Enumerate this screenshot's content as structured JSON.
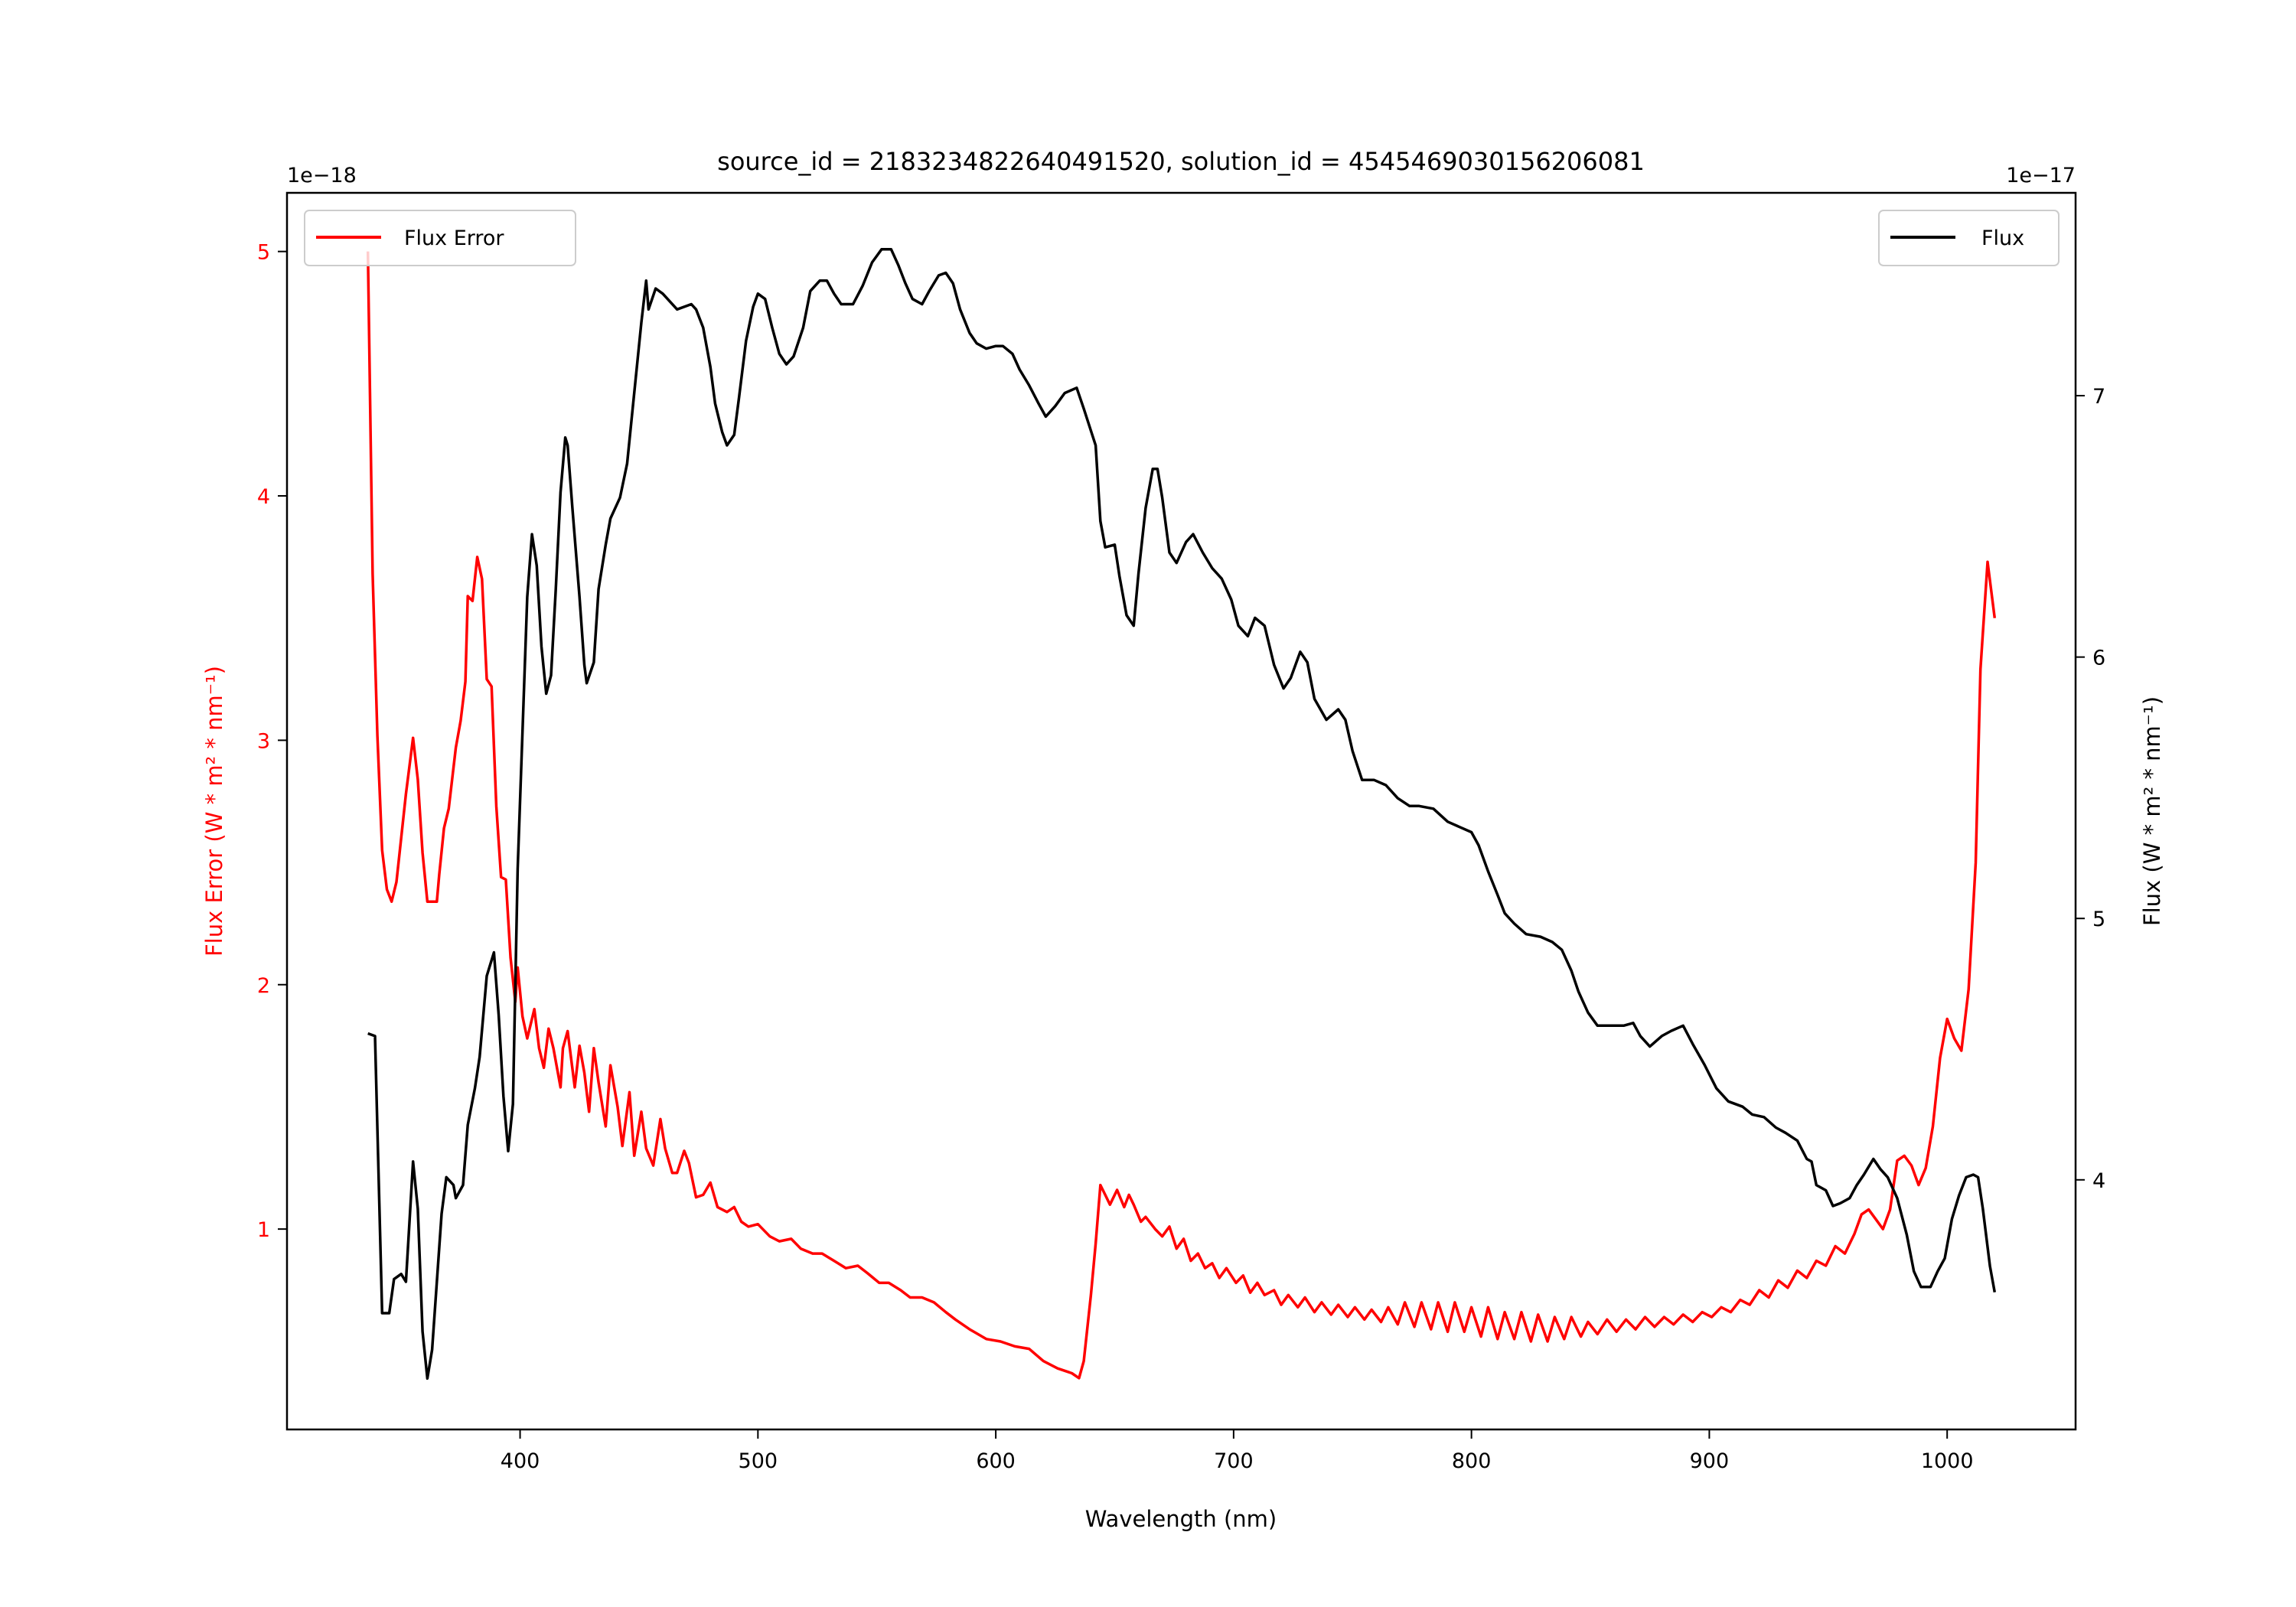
{
  "chart_data": {
    "type": "line",
    "title": "source_id = 2183234822640491520, solution_id = 4545469030156206081",
    "xlabel": "Wavelength (nm)",
    "xlim": [
      302,
      1054
    ],
    "xticks": [
      400,
      500,
      600,
      700,
      800,
      900,
      1000
    ],
    "left_axis": {
      "ylabel": "Flux Error (W * m² * nm⁻¹)",
      "offset_text": "1e−18",
      "ylim": [
        0.18,
        5.24
      ],
      "yticks": [
        1,
        2,
        3,
        4,
        5
      ],
      "color": "#ff0000"
    },
    "right_axis": {
      "ylabel": "Flux (W * m² * nm⁻¹)",
      "offset_text": "1e−17",
      "ylim": [
        3.045,
        7.776
      ],
      "yticks": [
        4,
        5,
        6,
        7
      ],
      "color": "#000000"
    },
    "legends": [
      {
        "label": "Flux Error",
        "color": "#ff0000",
        "placement": "upper-left"
      },
      {
        "label": "Flux",
        "color": "#000000",
        "placement": "upper-right"
      }
    ],
    "series": [
      {
        "name": "Flux Error",
        "axis": "left",
        "color": "#ff0000",
        "x": [
          336,
          338,
          340,
          342,
          344,
          346,
          348,
          350,
          352,
          355,
          357,
          359,
          361,
          365,
          366,
          368,
          370,
          373,
          375,
          377,
          378,
          380,
          382,
          384,
          386,
          388,
          390,
          392,
          394,
          396,
          398,
          399,
          401,
          403,
          406,
          408,
          410,
          412,
          414,
          417,
          418,
          420,
          423,
          425,
          427,
          429,
          431,
          433,
          436,
          438,
          441,
          443,
          446,
          448,
          451,
          453,
          456,
          459,
          461,
          464,
          466,
          469,
          471,
          474,
          477,
          480,
          483,
          487,
          490,
          493,
          496,
          500,
          505,
          509,
          514,
          518,
          523,
          527,
          532,
          537,
          542,
          546,
          551,
          555,
          560,
          564,
          569,
          574,
          579,
          583,
          589,
          596,
          602,
          608,
          614,
          620,
          626,
          632,
          635,
          637,
          640,
          642,
          644,
          646,
          648,
          651,
          654,
          656,
          658,
          661,
          663,
          667,
          670,
          673,
          676,
          679,
          682,
          685,
          688,
          691,
          694,
          697,
          701,
          704,
          707,
          710,
          713,
          717,
          720,
          723,
          727,
          730,
          734,
          737,
          741,
          744,
          748,
          751,
          755,
          758,
          762,
          765,
          769,
          772,
          776,
          779,
          783,
          786,
          790,
          793,
          797,
          800,
          804,
          807,
          811,
          814,
          818,
          821,
          825,
          828,
          832,
          835,
          839,
          842,
          846,
          849,
          853,
          857,
          861,
          865,
          869,
          873,
          877,
          881,
          885,
          889,
          893,
          897,
          901,
          905,
          909,
          913,
          917,
          921,
          925,
          929,
          933,
          937,
          941,
          945,
          949,
          953,
          957,
          961,
          964,
          967,
          970,
          973,
          976,
          979,
          982,
          985,
          988,
          991,
          994,
          997,
          1000,
          1003,
          1006,
          1009,
          1012,
          1014,
          1017,
          1020
        ],
        "y": [
          5.0,
          3.68,
          3.02,
          2.55,
          2.39,
          2.34,
          2.42,
          2.6,
          2.78,
          3.01,
          2.84,
          2.54,
          2.34,
          2.34,
          2.45,
          2.64,
          2.72,
          2.97,
          3.08,
          3.24,
          3.59,
          3.57,
          3.75,
          3.66,
          3.25,
          3.22,
          2.73,
          2.44,
          2.43,
          2.11,
          1.93,
          2.07,
          1.87,
          1.78,
          1.9,
          1.74,
          1.66,
          1.82,
          1.74,
          1.58,
          1.74,
          1.81,
          1.58,
          1.75,
          1.64,
          1.48,
          1.74,
          1.6,
          1.42,
          1.67,
          1.5,
          1.34,
          1.56,
          1.3,
          1.48,
          1.33,
          1.26,
          1.45,
          1.33,
          1.23,
          1.23,
          1.32,
          1.27,
          1.13,
          1.14,
          1.19,
          1.09,
          1.07,
          1.09,
          1.03,
          1.01,
          1.02,
          0.97,
          0.95,
          0.96,
          0.92,
          0.9,
          0.9,
          0.87,
          0.84,
          0.85,
          0.82,
          0.78,
          0.78,
          0.75,
          0.72,
          0.72,
          0.7,
          0.66,
          0.63,
          0.59,
          0.55,
          0.54,
          0.52,
          0.51,
          0.46,
          0.43,
          0.41,
          0.39,
          0.46,
          0.73,
          0.94,
          1.18,
          1.14,
          1.1,
          1.16,
          1.09,
          1.14,
          1.1,
          1.03,
          1.05,
          1.0,
          0.97,
          1.01,
          0.92,
          0.96,
          0.87,
          0.9,
          0.84,
          0.86,
          0.8,
          0.84,
          0.78,
          0.81,
          0.74,
          0.78,
          0.73,
          0.75,
          0.69,
          0.73,
          0.68,
          0.72,
          0.66,
          0.7,
          0.65,
          0.69,
          0.64,
          0.68,
          0.63,
          0.67,
          0.62,
          0.68,
          0.61,
          0.7,
          0.6,
          0.7,
          0.59,
          0.7,
          0.58,
          0.7,
          0.58,
          0.68,
          0.56,
          0.68,
          0.55,
          0.66,
          0.55,
          0.66,
          0.54,
          0.65,
          0.54,
          0.64,
          0.55,
          0.64,
          0.56,
          0.62,
          0.57,
          0.63,
          0.58,
          0.63,
          0.59,
          0.64,
          0.6,
          0.64,
          0.61,
          0.65,
          0.62,
          0.66,
          0.64,
          0.68,
          0.66,
          0.71,
          0.69,
          0.75,
          0.72,
          0.79,
          0.76,
          0.83,
          0.8,
          0.87,
          0.85,
          0.93,
          0.9,
          0.98,
          1.06,
          1.08,
          1.04,
          1.0,
          1.08,
          1.28,
          1.3,
          1.26,
          1.18,
          1.25,
          1.42,
          1.7,
          1.86,
          1.78,
          1.73,
          1.98,
          2.5,
          3.29,
          3.73,
          3.5
        ]
      },
      {
        "name": "Flux",
        "axis": "right",
        "color": "#000000",
        "x": [
          336,
          339,
          342,
          345,
          347,
          350,
          352,
          355,
          357,
          359,
          361,
          363,
          367,
          369,
          372,
          373,
          376,
          378,
          381,
          383,
          386,
          389,
          391,
          393,
          395,
          397,
          399,
          403,
          405,
          407,
          409,
          411,
          413,
          415,
          417,
          419,
          420,
          422,
          425,
          427,
          428,
          431,
          433,
          436,
          438,
          442,
          445,
          448,
          451,
          453,
          454,
          457,
          460,
          466,
          472,
          474,
          477,
          480,
          482,
          485,
          487,
          490,
          492,
          495,
          498,
          500,
          503,
          506,
          509,
          512,
          515,
          519,
          522,
          526,
          529,
          532,
          535,
          540,
          544,
          548,
          552,
          556,
          559,
          562,
          565,
          569,
          572,
          576,
          579,
          582,
          585,
          589,
          592,
          596,
          600,
          603,
          607,
          610,
          614,
          618,
          621,
          625,
          629,
          634,
          637,
          642,
          644,
          646,
          650,
          652,
          655,
          658,
          660,
          663,
          666,
          668,
          670,
          673,
          676,
          680,
          683,
          687,
          691,
          695,
          699,
          702,
          706,
          709,
          713,
          717,
          721,
          724,
          728,
          731,
          734,
          739,
          744,
          747,
          750,
          754,
          759,
          764,
          769,
          774,
          778,
          784,
          790,
          795,
          800,
          803,
          807,
          811,
          814,
          818,
          823,
          829,
          834,
          838,
          842,
          845,
          849,
          853,
          858,
          864,
          868,
          871,
          875,
          880,
          884,
          889,
          893,
          898,
          903,
          908,
          914,
          918,
          923,
          928,
          932,
          937,
          941,
          943,
          945,
          949,
          952,
          955,
          959,
          962,
          965,
          969,
          972,
          975,
          979,
          983,
          986,
          989,
          993,
          996,
          999,
          1002,
          1005,
          1008,
          1011,
          1013,
          1015,
          1018,
          1020
        ],
        "y": [
          4.56,
          4.55,
          3.49,
          3.49,
          3.62,
          3.64,
          3.61,
          4.07,
          3.89,
          3.42,
          3.24,
          3.35,
          3.87,
          4.01,
          3.98,
          3.93,
          3.98,
          4.21,
          4.35,
          4.47,
          4.78,
          4.87,
          4.63,
          4.32,
          4.11,
          4.29,
          5.19,
          6.23,
          6.47,
          6.35,
          6.04,
          5.86,
          5.93,
          6.26,
          6.63,
          6.84,
          6.81,
          6.57,
          6.23,
          5.97,
          5.9,
          5.98,
          6.26,
          6.43,
          6.53,
          6.61,
          6.74,
          7.01,
          7.28,
          7.44,
          7.33,
          7.41,
          7.39,
          7.33,
          7.35,
          7.33,
          7.26,
          7.11,
          6.97,
          6.86,
          6.81,
          6.85,
          6.99,
          7.21,
          7.34,
          7.39,
          7.37,
          7.26,
          7.16,
          7.12,
          7.15,
          7.26,
          7.4,
          7.44,
          7.44,
          7.39,
          7.35,
          7.35,
          7.42,
          7.51,
          7.56,
          7.56,
          7.5,
          7.43,
          7.37,
          7.35,
          7.4,
          7.46,
          7.47,
          7.43,
          7.33,
          7.24,
          7.2,
          7.18,
          7.19,
          7.19,
          7.16,
          7.1,
          7.04,
          6.97,
          6.92,
          6.96,
          7.01,
          7.03,
          6.95,
          6.81,
          6.52,
          6.42,
          6.43,
          6.31,
          6.16,
          6.12,
          6.32,
          6.57,
          6.72,
          6.72,
          6.61,
          6.4,
          6.36,
          6.44,
          6.47,
          6.4,
          6.34,
          6.3,
          6.22,
          6.12,
          6.08,
          6.15,
          6.12,
          5.97,
          5.88,
          5.92,
          6.02,
          5.98,
          5.84,
          5.76,
          5.8,
          5.76,
          5.64,
          5.53,
          5.53,
          5.51,
          5.46,
          5.43,
          5.43,
          5.42,
          5.37,
          5.35,
          5.33,
          5.28,
          5.18,
          5.09,
          5.02,
          4.98,
          4.94,
          4.93,
          4.91,
          4.88,
          4.8,
          4.72,
          4.64,
          4.59,
          4.59,
          4.59,
          4.6,
          4.55,
          4.51,
          4.55,
          4.57,
          4.59,
          4.52,
          4.44,
          4.35,
          4.3,
          4.28,
          4.25,
          4.24,
          4.2,
          4.18,
          4.15,
          4.08,
          4.07,
          3.98,
          3.96,
          3.9,
          3.91,
          3.93,
          3.98,
          4.02,
          4.08,
          4.04,
          4.01,
          3.93,
          3.79,
          3.65,
          3.59,
          3.59,
          3.65,
          3.7,
          3.85,
          3.94,
          4.01,
          4.02,
          4.01,
          3.89,
          3.67,
          3.57
        ]
      }
    ]
  }
}
